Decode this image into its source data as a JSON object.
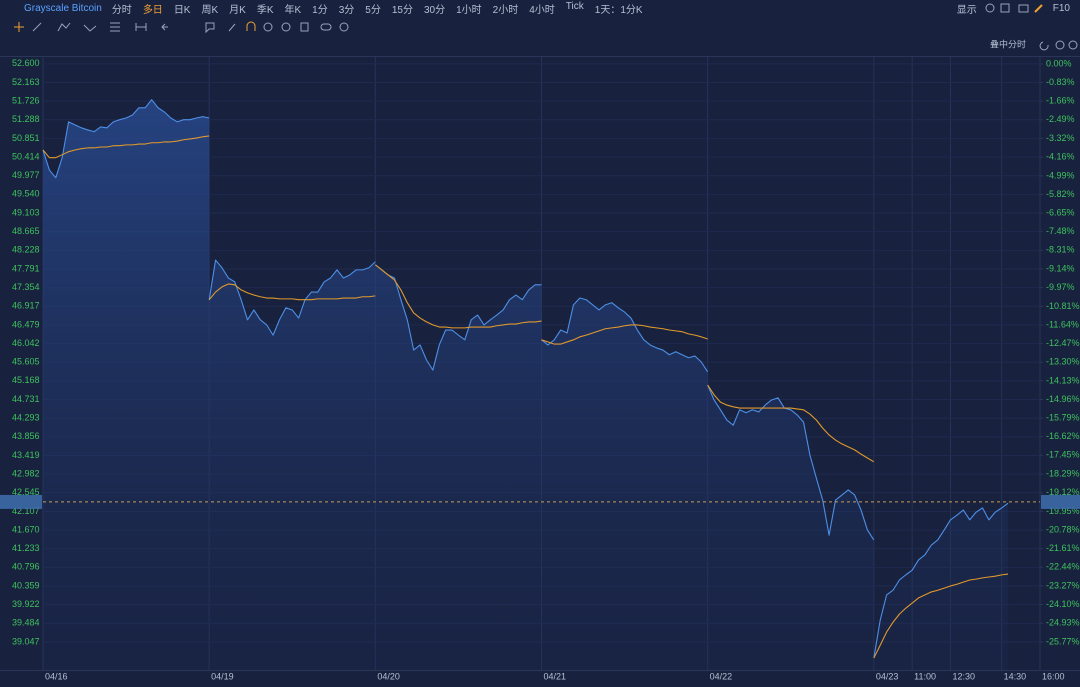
{
  "toolbar": {
    "symbol": "Grayscale Bitcoin",
    "periods": [
      "分时",
      "多日",
      "日K",
      "周K",
      "月K",
      "季K",
      "年K",
      "1分",
      "3分",
      "5分",
      "15分",
      "30分",
      "1小时",
      "2小时",
      "4小时",
      "Tick",
      "1天：1分K"
    ],
    "active_period": "多日",
    "display": "显示",
    "f10": "F10"
  },
  "overlay_label": "叠中分时",
  "chart_data": {
    "type": "line",
    "x": [
      0,
      15,
      30,
      45,
      60,
      75,
      90,
      105,
      120,
      135,
      150,
      165,
      180,
      195,
      210,
      225,
      240,
      255,
      270,
      285,
      300,
      315,
      330,
      345,
      360,
      375,
      390,
      null,
      390,
      405,
      420,
      435,
      450,
      465,
      480,
      495,
      510,
      525,
      540,
      555,
      570,
      585,
      600,
      615,
      630,
      645,
      660,
      675,
      690,
      705,
      720,
      735,
      750,
      765,
      780,
      null,
      780,
      795,
      810,
      825,
      840,
      855,
      870,
      885,
      900,
      915,
      930,
      945,
      960,
      975,
      990,
      1005,
      1020,
      1035,
      1050,
      1065,
      1080,
      1095,
      1110,
      1125,
      1140,
      1155,
      1170,
      null,
      1170,
      1185,
      1200,
      1215,
      1230,
      1245,
      1260,
      1275,
      1290,
      1305,
      1320,
      1335,
      1350,
      1365,
      1380,
      1395,
      1410,
      1425,
      1440,
      1455,
      1470,
      1485,
      1500,
      1515,
      1530,
      1545,
      1560,
      null,
      1560,
      1575,
      1590,
      1605,
      1620,
      1635,
      1650,
      1665,
      1680,
      1695,
      1710,
      1725,
      1740,
      1755,
      1770,
      1785,
      1800,
      1815,
      1830,
      1845,
      1860,
      1875,
      1890,
      1905,
      1920,
      1935,
      1950,
      null,
      1950,
      1965,
      1980,
      1995,
      2010,
      2025,
      2040,
      2055,
      2070,
      2085,
      2100,
      2115,
      2130,
      2145,
      2160,
      2175,
      2190,
      2205,
      2220,
      2235,
      2250,
      2265
    ],
    "series": [
      {
        "color": "#4d8fe6",
        "fill": true,
        "values": [
          50.58,
          50.11,
          49.93,
          50.4,
          51.24,
          51.17,
          51.1,
          51.05,
          51.01,
          51.12,
          51.1,
          51.24,
          51.29,
          51.33,
          51.4,
          51.57,
          51.57,
          51.76,
          51.57,
          51.47,
          51.33,
          51.24,
          51.29,
          51.29,
          51.33,
          51.36,
          51.33,
          null,
          47.07,
          48.0,
          47.82,
          47.58,
          47.49,
          47.07,
          46.6,
          46.83,
          46.6,
          46.48,
          46.24,
          46.6,
          46.88,
          46.83,
          46.64,
          47.07,
          47.25,
          47.25,
          47.49,
          47.58,
          47.77,
          47.58,
          47.65,
          47.77,
          47.77,
          47.82,
          47.96,
          null,
          47.89,
          47.77,
          47.65,
          47.58,
          47.07,
          46.6,
          45.89,
          46.01,
          45.66,
          45.42,
          46.01,
          46.36,
          46.36,
          46.24,
          46.13,
          46.6,
          46.71,
          46.48,
          46.6,
          46.71,
          46.83,
          47.07,
          47.18,
          47.07,
          47.3,
          47.42,
          47.42,
          null,
          46.13,
          46.01,
          46.13,
          46.36,
          46.29,
          46.95,
          47.11,
          47.07,
          46.95,
          46.83,
          46.95,
          47.0,
          46.88,
          46.78,
          46.64,
          46.36,
          46.13,
          46.01,
          45.94,
          45.89,
          45.78,
          45.85,
          45.78,
          45.71,
          45.75,
          45.61,
          45.38,
          null,
          45.07,
          44.72,
          44.49,
          44.25,
          44.13,
          44.49,
          44.42,
          44.49,
          44.44,
          44.6,
          44.72,
          44.77,
          44.53,
          44.49,
          44.37,
          44.2,
          43.43,
          42.89,
          42.37,
          41.55,
          42.37,
          42.49,
          42.61,
          42.49,
          42.14,
          41.67,
          41.44,
          null,
          38.67,
          39.56,
          40.15,
          40.26,
          40.5,
          40.62,
          40.73,
          40.97,
          41.09,
          41.32,
          41.44,
          41.67,
          41.91,
          42.02,
          42.14,
          41.91,
          42.09,
          42.19,
          41.91,
          42.09,
          42.19,
          42.3
        ]
      },
      {
        "color": "#e0992c",
        "fill": false,
        "values": [
          50.58,
          50.4,
          50.4,
          50.47,
          50.54,
          50.58,
          50.61,
          50.63,
          50.63,
          50.65,
          50.65,
          50.68,
          50.68,
          50.7,
          50.7,
          50.72,
          50.72,
          50.75,
          50.75,
          50.77,
          50.77,
          50.79,
          50.82,
          50.84,
          50.86,
          50.89,
          50.91,
          null,
          47.07,
          47.25,
          47.37,
          47.44,
          47.42,
          47.3,
          47.23,
          47.18,
          47.14,
          47.11,
          47.11,
          47.09,
          47.09,
          47.09,
          47.07,
          47.07,
          47.07,
          47.09,
          47.09,
          47.09,
          47.09,
          47.11,
          47.11,
          47.11,
          47.14,
          47.14,
          47.16,
          null,
          47.89,
          47.77,
          47.65,
          47.53,
          47.3,
          47.0,
          46.76,
          46.64,
          46.55,
          46.48,
          46.43,
          46.43,
          46.41,
          46.41,
          46.41,
          46.43,
          46.43,
          46.43,
          46.43,
          46.46,
          46.48,
          46.5,
          46.5,
          46.53,
          46.55,
          46.55,
          46.57,
          null,
          46.13,
          46.08,
          46.03,
          46.03,
          46.08,
          46.13,
          46.2,
          46.24,
          46.29,
          46.34,
          46.39,
          46.41,
          46.43,
          46.46,
          46.48,
          46.48,
          46.46,
          46.43,
          46.41,
          46.39,
          46.36,
          46.34,
          46.32,
          46.27,
          46.24,
          46.2,
          46.15,
          null,
          45.07,
          44.84,
          44.67,
          44.6,
          44.56,
          44.53,
          44.53,
          44.53,
          44.53,
          44.53,
          44.53,
          44.53,
          44.53,
          44.53,
          44.51,
          44.49,
          44.39,
          44.25,
          44.06,
          43.9,
          43.78,
          43.69,
          43.62,
          43.55,
          43.45,
          43.36,
          43.27,
          null,
          38.67,
          38.97,
          39.28,
          39.51,
          39.7,
          39.84,
          39.96,
          40.08,
          40.15,
          40.22,
          40.26,
          40.31,
          40.36,
          40.4,
          40.45,
          40.5,
          40.52,
          40.55,
          40.57,
          40.59,
          40.62,
          40.64
        ]
      }
    ],
    "xlim": [
      0,
      2340
    ],
    "xticks": [
      {
        "value": 0,
        "label": "04/16"
      },
      {
        "value": 390,
        "label": "04/19"
      },
      {
        "value": 780,
        "label": "04/20"
      },
      {
        "value": 1170,
        "label": "04/21"
      },
      {
        "value": 1560,
        "label": "04/22"
      },
      {
        "value": 1950,
        "label": "04/23"
      },
      {
        "value": 2040,
        "label": "11:00"
      },
      {
        "value": 2130,
        "label": "12:30"
      },
      {
        "value": 2250,
        "label": "14:30"
      },
      {
        "value": 2340,
        "label": "16:00"
      }
    ],
    "ylim": [
      38.39,
      52.76
    ],
    "yticks": [
      {
        "value": 52.6,
        "label": "52.600"
      },
      {
        "value": 52.163,
        "label": "52.163"
      },
      {
        "value": 51.726,
        "label": "51.726"
      },
      {
        "value": 51.288,
        "label": "51.288"
      },
      {
        "value": 50.851,
        "label": "50.851"
      },
      {
        "value": 50.414,
        "label": "50.414"
      },
      {
        "value": 49.977,
        "label": "49.977"
      },
      {
        "value": 49.54,
        "label": "49.540"
      },
      {
        "value": 49.103,
        "label": "49.103"
      },
      {
        "value": 48.665,
        "label": "48.665"
      },
      {
        "value": 48.228,
        "label": "48.228"
      },
      {
        "value": 47.791,
        "label": "47.791"
      },
      {
        "value": 47.354,
        "label": "47.354"
      },
      {
        "value": 46.917,
        "label": "46.917"
      },
      {
        "value": 46.479,
        "label": "46.479"
      },
      {
        "value": 46.042,
        "label": "46.042"
      },
      {
        "value": 45.605,
        "label": "45.605"
      },
      {
        "value": 45.168,
        "label": "45.168"
      },
      {
        "value": 44.731,
        "label": "44.731"
      },
      {
        "value": 44.293,
        "label": "44.293"
      },
      {
        "value": 43.856,
        "label": "43.856"
      },
      {
        "value": 43.419,
        "label": "43.419"
      },
      {
        "value": 42.982,
        "label": "42.982"
      },
      {
        "value": 42.545,
        "label": "42.545"
      },
      {
        "value": 42.107,
        "label": "42.107"
      },
      {
        "value": 41.67,
        "label": "41.670"
      },
      {
        "value": 41.233,
        "label": "41.233"
      },
      {
        "value": 40.796,
        "label": "40.796"
      },
      {
        "value": 40.359,
        "label": "40.359"
      },
      {
        "value": 39.922,
        "label": "39.922"
      },
      {
        "value": 39.484,
        "label": "39.484"
      },
      {
        "value": 39.047,
        "label": "39.047"
      }
    ],
    "y2lim": [
      -27.02,
      0.31
    ],
    "y2ticks": [
      {
        "value": 0,
        "label": "0.00%"
      },
      {
        "value": -0.83,
        "label": "-0.83%"
      },
      {
        "value": -1.66,
        "label": "-1.66%"
      },
      {
        "value": -2.49,
        "label": "-2.49%"
      },
      {
        "value": -3.32,
        "label": "-3.32%"
      },
      {
        "value": -4.16,
        "label": "-4.16%"
      },
      {
        "value": -4.99,
        "label": "-4.99%"
      },
      {
        "value": -5.82,
        "label": "-5.82%"
      },
      {
        "value": -6.65,
        "label": "-6.65%"
      },
      {
        "value": -7.48,
        "label": "-7.48%"
      },
      {
        "value": -8.31,
        "label": "-8.31%"
      },
      {
        "value": -9.14,
        "label": "-9.14%"
      },
      {
        "value": -9.97,
        "label": "-9.97%"
      },
      {
        "value": -10.81,
        "label": "-10.81%"
      },
      {
        "value": -11.64,
        "label": "-11.64%"
      },
      {
        "value": -12.47,
        "label": "-12.47%"
      },
      {
        "value": -13.3,
        "label": "-13.30%"
      },
      {
        "value": -14.13,
        "label": "-14.13%"
      },
      {
        "value": -14.96,
        "label": "-14.96%"
      },
      {
        "value": -15.79,
        "label": "-15.79%"
      },
      {
        "value": -16.62,
        "label": "-16.62%"
      },
      {
        "value": -17.45,
        "label": "-17.45%"
      },
      {
        "value": -18.29,
        "label": "-18.29%"
      },
      {
        "value": -19.12,
        "label": "-19.12%"
      },
      {
        "value": -19.95,
        "label": "-19.95%"
      },
      {
        "value": -20.78,
        "label": "-20.78%"
      },
      {
        "value": -21.61,
        "label": "-21.61%"
      },
      {
        "value": -22.44,
        "label": "-22.44%"
      },
      {
        "value": -23.27,
        "label": "-23.27%"
      },
      {
        "value": -24.1,
        "label": "-24.10%"
      },
      {
        "value": -24.93,
        "label": "-24.93%"
      },
      {
        "value": -25.77,
        "label": "-25.77%"
      }
    ],
    "current_price": 42.33,
    "grid": true,
    "axis_label_color": "#3ec25c"
  }
}
